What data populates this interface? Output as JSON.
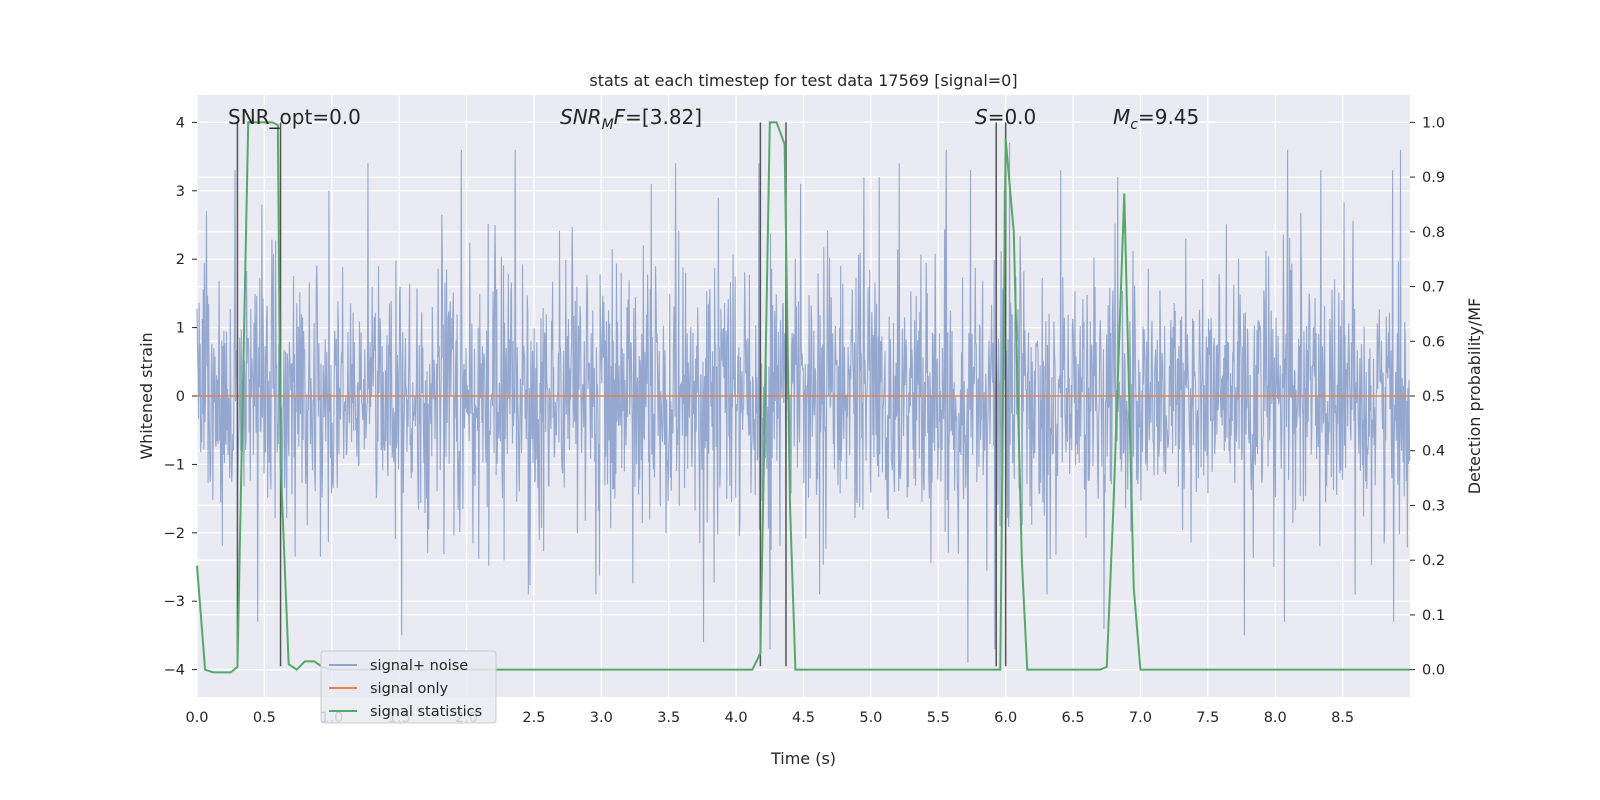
{
  "chart_data": {
    "type": "line",
    "title": "stats at each timestep for test data 17569 [signal=0]",
    "xlabel": "Time (s)",
    "ylabel_left": "Whitened strain",
    "ylabel_right": "Detection probability/MF",
    "xlim": [
      0.0,
      9.0
    ],
    "ylim_left": [
      -4.4,
      4.4
    ],
    "ylim_right": [
      -0.05,
      1.05
    ],
    "x_ticks": [
      0.0,
      0.5,
      1.0,
      1.5,
      2.0,
      2.5,
      3.0,
      3.5,
      4.0,
      4.5,
      5.0,
      5.5,
      6.0,
      6.5,
      7.0,
      7.5,
      8.0,
      8.5
    ],
    "x_tick_labels": [
      "0.0",
      "0.5",
      "1.0",
      "1.5",
      "2.0",
      "2.5",
      "3.0",
      "3.5",
      "4.0",
      "4.5",
      "5.0",
      "5.5",
      "6.0",
      "6.5",
      "7.0",
      "7.5",
      "8.0",
      "8.5"
    ],
    "y_left_ticks": [
      -4,
      -3,
      -2,
      -1,
      0,
      1,
      2,
      3,
      4
    ],
    "y_left_tick_labels": [
      "−4",
      "−3",
      "−2",
      "−1",
      "0",
      "1",
      "2",
      "3",
      "4"
    ],
    "y_right_ticks": [
      0.0,
      0.1,
      0.2,
      0.3,
      0.4,
      0.5,
      0.6,
      0.7,
      0.8,
      0.9,
      1.0
    ],
    "y_right_tick_labels": [
      "0.0",
      "0.1",
      "0.2",
      "0.3",
      "0.4",
      "0.5",
      "0.6",
      "0.7",
      "0.8",
      "0.9",
      "1.0"
    ],
    "grid": true,
    "legend_placement": "lower-left",
    "annotations": [
      {
        "label": "SNR_opt=0.0",
        "kind": "plain"
      },
      {
        "label": "SNR",
        "sub": "M",
        "rest": "F=[3.82]",
        "kind": "math"
      },
      {
        "label": "S",
        "rest": "=0.0",
        "kind": "math"
      },
      {
        "label": "M",
        "sub": "c",
        "rest": "=9.45",
        "kind": "math"
      }
    ],
    "series": [
      {
        "name": "signal+ noise",
        "axis": "left",
        "color": "#8fa3cc",
        "kind": "noise",
        "note_amplitude": "roughly +/-2 with spikes to about +/-3.8",
        "spike_peaks": [
          [
            0.07,
            2.7
          ],
          [
            0.28,
            3.3
          ],
          [
            0.48,
            2.8
          ],
          [
            0.98,
            3.0
          ],
          [
            1.27,
            3.4
          ],
          [
            1.96,
            3.6
          ],
          [
            2.36,
            3.6
          ],
          [
            3.37,
            3.1
          ],
          [
            3.55,
            3.4
          ],
          [
            4.17,
            3.4
          ],
          [
            4.48,
            3.1
          ],
          [
            4.95,
            3.2
          ],
          [
            5.06,
            3.2
          ],
          [
            5.21,
            3.4
          ],
          [
            5.56,
            3.6
          ],
          [
            5.74,
            3.3
          ],
          [
            5.99,
            3.0
          ],
          [
            6.03,
            3.7
          ],
          [
            6.41,
            3.3
          ],
          [
            6.83,
            3.2
          ],
          [
            8.09,
            3.6
          ],
          [
            8.34,
            3.3
          ],
          [
            8.87,
            3.3
          ],
          [
            8.93,
            3.6
          ],
          [
            0.45,
            -3.3
          ],
          [
            1.52,
            -3.5
          ],
          [
            3.76,
            -3.6
          ],
          [
            4.25,
            -3.7
          ],
          [
            5.72,
            -3.9
          ],
          [
            5.92,
            -3.7
          ],
          [
            6.73,
            -3.4
          ],
          [
            7.77,
            -3.5
          ],
          [
            8.07,
            -3.3
          ],
          [
            8.88,
            -3.3
          ]
        ]
      },
      {
        "name": "signal only",
        "axis": "left",
        "color": "#dd8452",
        "x": [
          0.0,
          9.0
        ],
        "y": [
          0.0,
          0.0
        ]
      },
      {
        "name": "signal statistics",
        "axis": "right",
        "color": "#55a868",
        "x": [
          0.0,
          0.06,
          0.12,
          0.25,
          0.3,
          0.38,
          0.45,
          0.5,
          0.56,
          0.6,
          0.62,
          0.68,
          0.74,
          0.8,
          0.87,
          0.93,
          1.0,
          4.12,
          4.18,
          4.2,
          4.25,
          4.3,
          4.36,
          4.4,
          4.44,
          5.93,
          5.96,
          6.0,
          6.06,
          6.12,
          6.16,
          6.7,
          6.75,
          6.8,
          6.88,
          6.95,
          7.0,
          9.0
        ],
        "y": [
          0.19,
          0.0,
          -0.005,
          -0.005,
          0.005,
          1.0,
          1.0,
          1.0,
          1.0,
          0.995,
          0.38,
          0.01,
          0.0,
          0.015,
          0.015,
          0.005,
          0.0,
          0.0,
          0.03,
          0.3,
          1.0,
          1.0,
          0.96,
          0.3,
          0.0,
          0.0,
          0.0,
          0.97,
          0.8,
          0.2,
          0.0,
          0.0,
          0.005,
          0.3,
          0.87,
          0.15,
          0.0,
          0.0
        ]
      }
    ],
    "vertical_markers": [
      0.3,
      0.62,
      4.18,
      4.37,
      5.93,
      6.0
    ],
    "vertical_marker_color": "#555555"
  }
}
